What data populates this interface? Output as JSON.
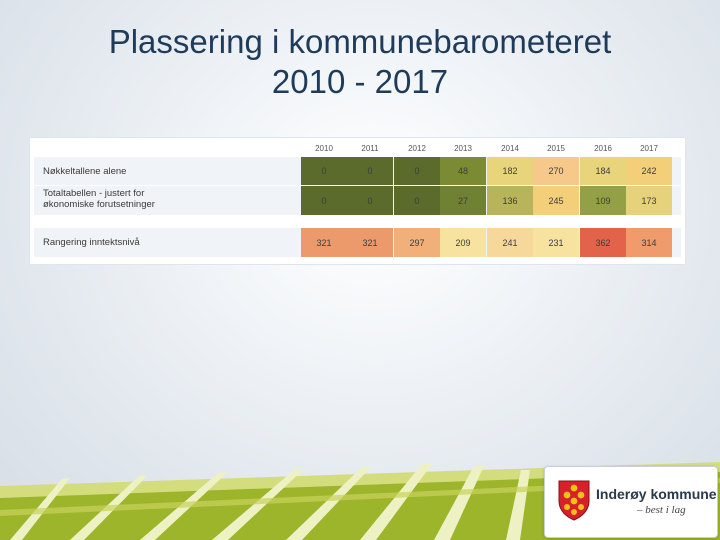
{
  "slide": {
    "title_line1": "Plassering i kommunebarometeret",
    "title_line2": "2010 - 2017"
  },
  "table": {
    "years": [
      "2010",
      "2011",
      "2012",
      "2013",
      "2014",
      "2015",
      "2016",
      "2017"
    ],
    "rows": [
      {
        "label": "Nøkkeltallene alene",
        "values": [
          "0",
          "0",
          "0",
          "48",
          "182",
          "270",
          "184",
          "242"
        ],
        "colors": [
          "#5a6b2c",
          "#5a6b2c",
          "#5a6b2c",
          "#7a8b34",
          "#e8d47a",
          "#f6c98a",
          "#e8d47a",
          "#f3cf7a"
        ]
      },
      {
        "label_line1": "Totaltabellen - justert for",
        "label_line2": "økonomiske forutsetninger",
        "values": [
          "0",
          "0",
          "0",
          "27",
          "136",
          "245",
          "109",
          "173"
        ],
        "colors": [
          "#5a6b2c",
          "#5a6b2c",
          "#5a6b2c",
          "#6f8132",
          "#b7b45a",
          "#f3cf7a",
          "#93a046",
          "#e5d27a"
        ]
      },
      {
        "label": "Rangering inntektsnivå",
        "values": [
          "321",
          "321",
          "297",
          "209",
          "241",
          "231",
          "362",
          "314"
        ],
        "colors": [
          "#ec9a6c",
          "#ec9a6c",
          "#f1b07a",
          "#f7e2a0",
          "#f6d89a",
          "#f7e2a0",
          "#e2624a",
          "#ef9b6b"
        ]
      }
    ]
  },
  "logo": {
    "name": "Inderøy kommune",
    "tagline": "– best i lag",
    "icon": "coat-of-arms-icon"
  },
  "colors": {
    "title": "#1f3b5a",
    "decor_green": "#9fb52a",
    "decor_light": "#d7e08a"
  }
}
